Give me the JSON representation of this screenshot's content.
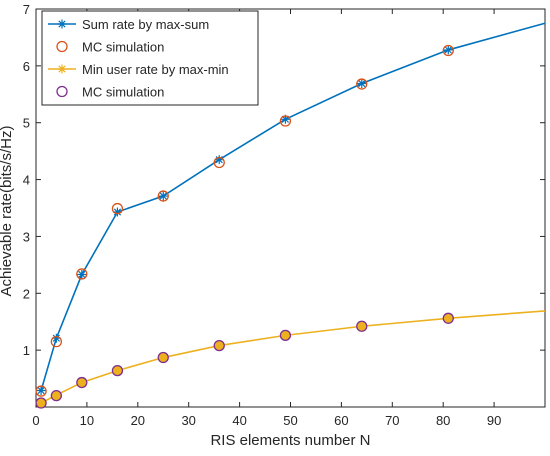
{
  "chart_data": {
    "type": "line",
    "title": "",
    "xlabel": "RIS elements number N",
    "ylabel": "Achievable rate(bits/s/Hz)",
    "xlim": [
      0,
      100
    ],
    "ylim": [
      0,
      7
    ],
    "xticks": [
      0,
      10,
      20,
      30,
      40,
      50,
      60,
      70,
      80,
      90
    ],
    "yticks": [
      1,
      2,
      3,
      4,
      5,
      6,
      7
    ],
    "grid": false,
    "legend_position": "top-left",
    "series": [
      {
        "name": "Sum rate by max-sum",
        "style": "line-star",
        "color": "#0072BD",
        "x": [
          1,
          4,
          9,
          16,
          25,
          36,
          49,
          64,
          81,
          100
        ],
        "values": [
          0.29,
          1.21,
          2.33,
          3.43,
          3.71,
          4.35,
          5.06,
          5.69,
          6.28,
          6.75
        ]
      },
      {
        "name": "MC simulation",
        "style": "circle",
        "color": "#D95319",
        "x": [
          1,
          4,
          9,
          16,
          25,
          36,
          49,
          64,
          81
        ],
        "values": [
          0.28,
          1.15,
          2.34,
          3.49,
          3.71,
          4.3,
          5.03,
          5.68,
          6.27
        ]
      },
      {
        "name": "Min user rate by max-min",
        "style": "line-star",
        "color": "#EDB120",
        "x": [
          1,
          4,
          9,
          16,
          25,
          36,
          49,
          64,
          81,
          100
        ],
        "values": [
          0.07,
          0.21,
          0.43,
          0.64,
          0.87,
          1.08,
          1.26,
          1.42,
          1.56,
          1.69
        ]
      },
      {
        "name": "MC simulation",
        "style": "circle",
        "color": "#7E2F8E",
        "x": [
          1,
          4,
          9,
          16,
          25,
          36,
          49,
          64,
          81
        ],
        "values": [
          0.07,
          0.2,
          0.43,
          0.64,
          0.87,
          1.08,
          1.26,
          1.42,
          1.56
        ]
      }
    ],
    "marker_fill": "#EDB120"
  }
}
